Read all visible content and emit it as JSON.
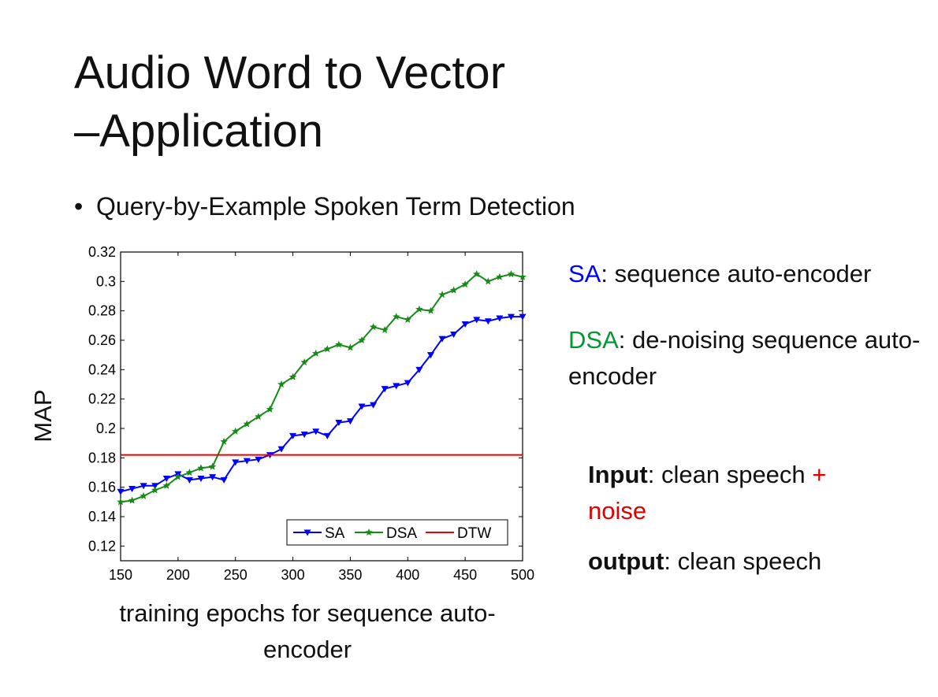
{
  "slide": {
    "title_line1": "Audio Word to Vector",
    "title_line2": "–Application",
    "bullet": "Query-by-Example Spoken Term Detection"
  },
  "definitions": {
    "sa_term": "SA",
    "sa_rest": ": sequence auto-encoder",
    "dsa_term": "DSA",
    "dsa_rest": ": de-noising sequence auto-encoder",
    "input_label": "Input",
    "input_text": ": clean speech ",
    "input_plus": "+",
    "input_noise": "noise",
    "output_label": "output",
    "output_text": ": clean speech"
  },
  "colors": {
    "sa": "#0000ff",
    "dsa": "#009933",
    "dsa_line": "#178a17",
    "dtw": "#ee0000",
    "noise": "#e00000"
  },
  "chart_data": {
    "type": "line",
    "xlabel": "training epochs for sequence auto-encoder",
    "ylabel": "MAP",
    "xlim": [
      150,
      500
    ],
    "ylim": [
      0.11,
      0.32
    ],
    "xticks": [
      150,
      200,
      250,
      300,
      350,
      400,
      450,
      500
    ],
    "yticks": [
      0.12,
      0.14,
      0.16,
      0.18,
      0.2,
      0.22,
      0.24,
      0.26,
      0.28,
      0.3,
      0.32
    ],
    "ytick_labels": [
      "0.12",
      "0.14",
      "0.16",
      "0.18",
      "0.2",
      "0.22",
      "0.24",
      "0.26",
      "0.28",
      "0.3",
      "0.32"
    ],
    "grid": false,
    "legend_position": "bottom-right",
    "series": [
      {
        "name": "SA",
        "marker": "triangle-down",
        "x": [
          150,
          160,
          170,
          180,
          190,
          200,
          210,
          220,
          230,
          240,
          250,
          260,
          270,
          280,
          290,
          300,
          310,
          320,
          330,
          340,
          350,
          360,
          370,
          380,
          390,
          400,
          410,
          420,
          430,
          440,
          450,
          460,
          470,
          480,
          490,
          500
        ],
        "values": [
          0.157,
          0.159,
          0.161,
          0.161,
          0.166,
          0.169,
          0.165,
          0.166,
          0.167,
          0.165,
          0.177,
          0.178,
          0.179,
          0.182,
          0.186,
          0.195,
          0.196,
          0.198,
          0.195,
          0.204,
          0.205,
          0.215,
          0.216,
          0.227,
          0.229,
          0.231,
          0.24,
          0.25,
          0.261,
          0.264,
          0.271,
          0.274,
          0.273,
          0.275,
          0.276,
          0.276
        ]
      },
      {
        "name": "DSA",
        "marker": "star",
        "x": [
          150,
          160,
          170,
          180,
          190,
          200,
          210,
          220,
          230,
          240,
          250,
          260,
          270,
          280,
          290,
          300,
          310,
          320,
          330,
          340,
          350,
          360,
          370,
          380,
          390,
          400,
          410,
          420,
          430,
          440,
          450,
          460,
          470,
          480,
          490,
          500
        ],
        "values": [
          0.15,
          0.151,
          0.154,
          0.158,
          0.161,
          0.167,
          0.17,
          0.173,
          0.174,
          0.191,
          0.198,
          0.203,
          0.208,
          0.213,
          0.23,
          0.235,
          0.245,
          0.251,
          0.254,
          0.257,
          0.255,
          0.26,
          0.269,
          0.267,
          0.276,
          0.274,
          0.281,
          0.28,
          0.291,
          0.294,
          0.298,
          0.305,
          0.3,
          0.303,
          0.305,
          0.303
        ]
      },
      {
        "name": "DTW",
        "marker": "none",
        "x": [
          150,
          500
        ],
        "values": [
          0.182,
          0.182
        ]
      }
    ]
  }
}
